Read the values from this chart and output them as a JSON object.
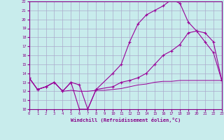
{
  "xlabel": "Windchill (Refroidissement éolien,°C)",
  "background_color": "#c8ecec",
  "grid_color": "#aaaacc",
  "line_color": "#990099",
  "xlim": [
    0,
    23
  ],
  "ylim": [
    10,
    22
  ],
  "xticks": [
    0,
    1,
    2,
    3,
    4,
    5,
    6,
    7,
    8,
    9,
    10,
    11,
    12,
    13,
    14,
    15,
    16,
    17,
    18,
    19,
    20,
    21,
    22,
    23
  ],
  "yticks": [
    10,
    11,
    12,
    13,
    14,
    15,
    16,
    17,
    18,
    19,
    20,
    21,
    22
  ],
  "line1_x": [
    0,
    1,
    2,
    3,
    4,
    5,
    6,
    7,
    8,
    10,
    11,
    12,
    13,
    14,
    15,
    16,
    17,
    18,
    19,
    20,
    21,
    22,
    23
  ],
  "line1_y": [
    13.5,
    12.2,
    12.5,
    13.0,
    12.0,
    13.0,
    10.0,
    10.0,
    12.2,
    14.0,
    15.0,
    17.5,
    19.5,
    20.5,
    21.0,
    21.5,
    22.2,
    21.8,
    19.7,
    18.7,
    17.5,
    16.3,
    13.2
  ],
  "line2_x": [
    0,
    1,
    2,
    3,
    4,
    5,
    6,
    7,
    8,
    10,
    11,
    12,
    13,
    14,
    15,
    16,
    17,
    18,
    19,
    20,
    21,
    22,
    23
  ],
  "line2_y": [
    13.5,
    12.2,
    12.5,
    13.0,
    12.0,
    13.0,
    12.7,
    10.0,
    12.2,
    12.5,
    13.0,
    13.2,
    13.5,
    14.0,
    15.0,
    16.0,
    16.5,
    17.2,
    18.5,
    18.7,
    18.5,
    17.5,
    13.2
  ],
  "line3_x": [
    0,
    1,
    2,
    3,
    4,
    5,
    6,
    7,
    8,
    9,
    10,
    11,
    12,
    13,
    14,
    15,
    16,
    17,
    18,
    19,
    20,
    21,
    22,
    23
  ],
  "line3_y": [
    13.5,
    12.2,
    12.5,
    13.0,
    12.0,
    12.1,
    12.0,
    12.0,
    12.1,
    12.1,
    12.2,
    12.3,
    12.5,
    12.7,
    12.8,
    13.0,
    13.1,
    13.1,
    13.2,
    13.2,
    13.2,
    13.2,
    13.2,
    13.2
  ]
}
